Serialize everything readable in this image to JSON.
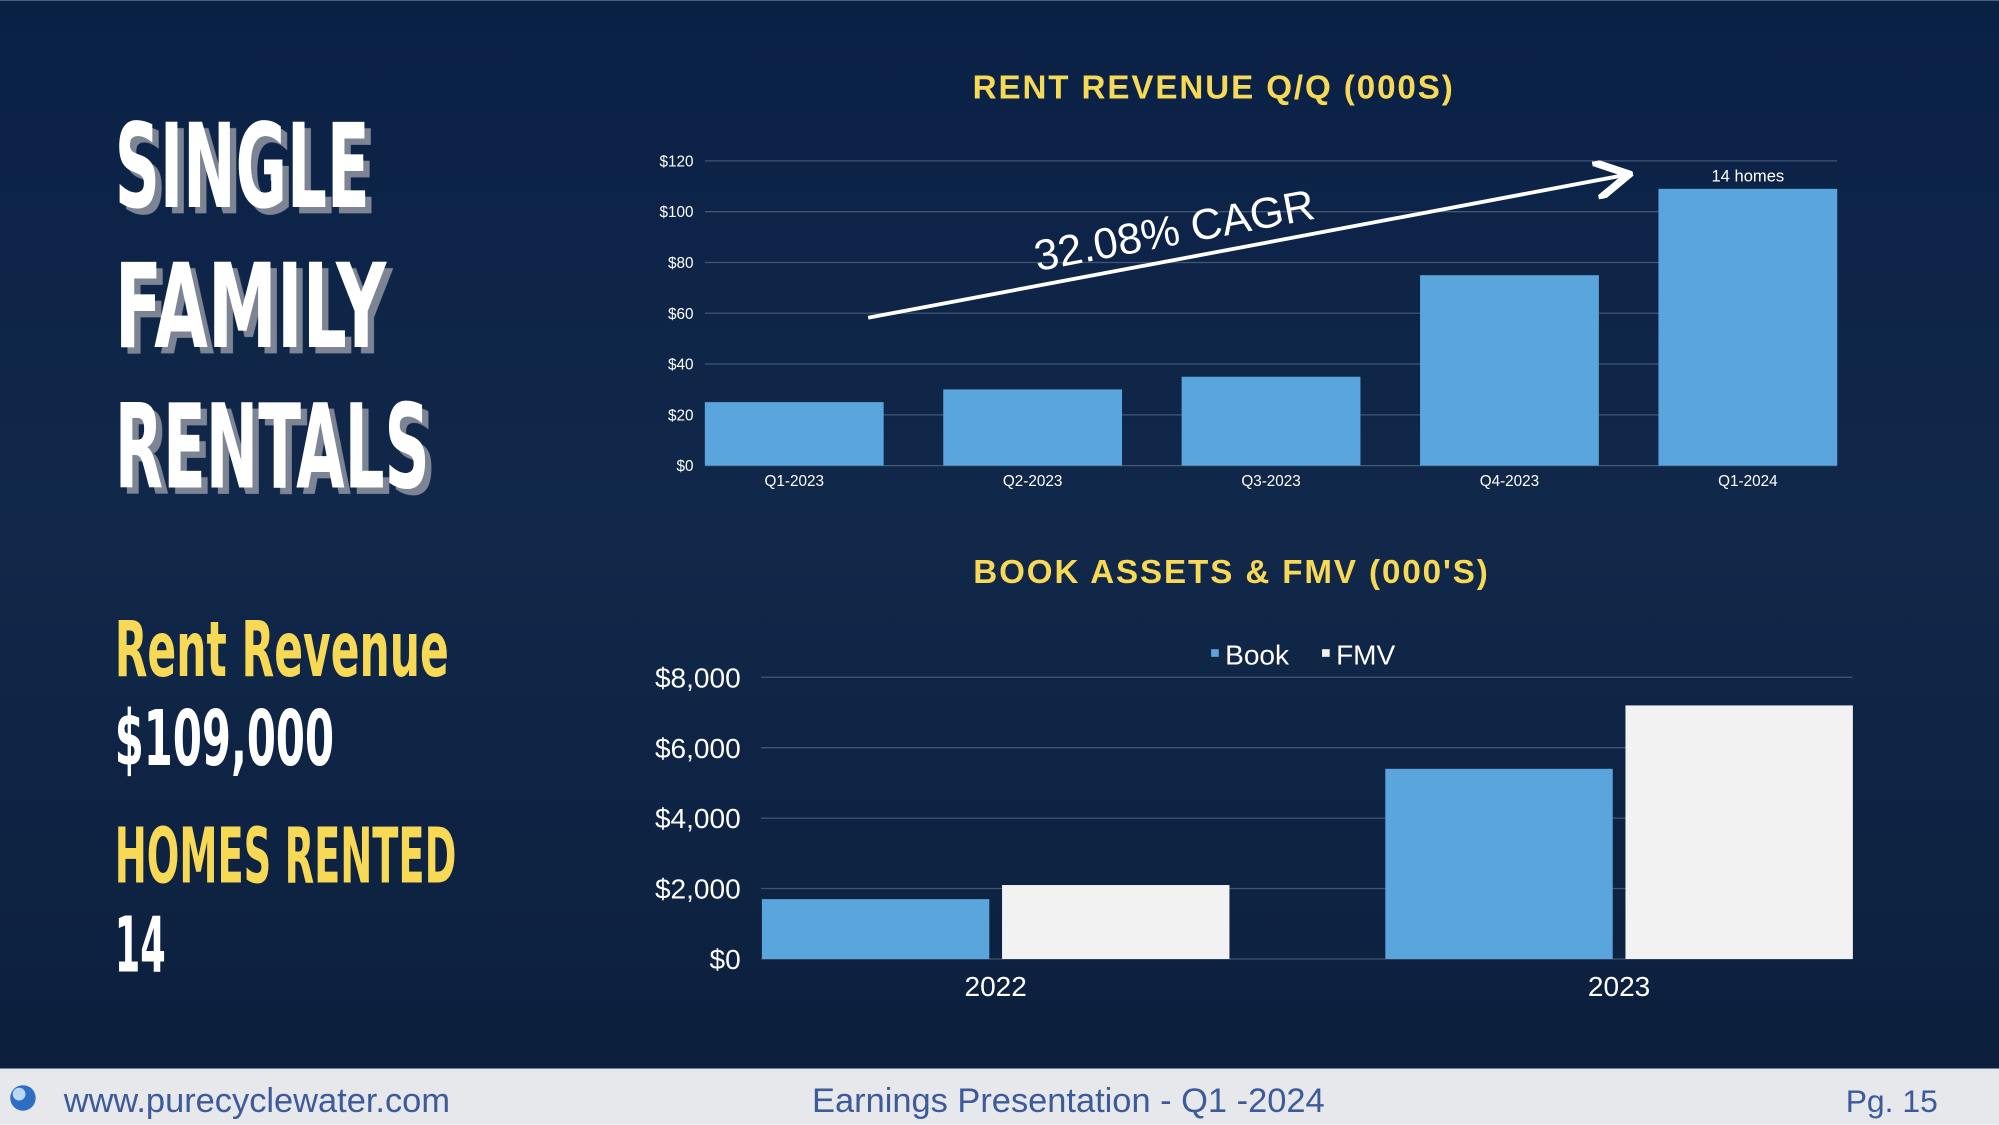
{
  "slide": {
    "title_lines": [
      "SINGLE",
      "FAMILY",
      "RENTALS"
    ],
    "stats": [
      {
        "label": "Rent Revenue",
        "value": "$109,000"
      },
      {
        "label": "HOMES RENTED",
        "value": "14"
      }
    ]
  },
  "footer": {
    "website": "www.purecyclewater.com",
    "center": "Earnings Presentation - Q1 -2024",
    "page": "Pg. 15"
  },
  "chart_data": [
    {
      "type": "bar",
      "title": "RENT REVENUE Q/Q (000S)",
      "categories": [
        "Q1-2023",
        "Q2-2023",
        "Q3-2023",
        "Q4-2023",
        "Q1-2024"
      ],
      "values": [
        25,
        30,
        35,
        75,
        109
      ],
      "color": "#5aa5dc",
      "ylim": [
        0,
        120
      ],
      "yticks": [
        {
          "value": 0,
          "label": "$0"
        },
        {
          "value": 20,
          "label": "$20"
        },
        {
          "value": 40,
          "label": "$40"
        },
        {
          "value": 60,
          "label": "$60"
        },
        {
          "value": 80,
          "label": "$80"
        },
        {
          "value": 100,
          "label": "$100"
        },
        {
          "value": 120,
          "label": "$120"
        }
      ],
      "grid": true,
      "annotations": [
        "32.08% CAGR",
        "14 homes"
      ]
    },
    {
      "type": "bar",
      "title": "BOOK ASSETS & FMV (000'S)",
      "categories": [
        "2022",
        "2023"
      ],
      "series": [
        {
          "name": "Book",
          "color": "#5aa5dc",
          "values": [
            1700,
            5400
          ]
        },
        {
          "name": "FMV",
          "color": "#f2f2f2",
          "values": [
            2100,
            7200
          ]
        }
      ],
      "ylim": [
        0,
        8000
      ],
      "yticks": [
        {
          "value": 0,
          "label": "$0"
        },
        {
          "value": 2000,
          "label": "$2,000"
        },
        {
          "value": 4000,
          "label": "$4,000"
        },
        {
          "value": 6000,
          "label": "$6,000"
        },
        {
          "value": 8000,
          "label": "$8,000"
        }
      ],
      "grid": true,
      "legend": "top"
    }
  ]
}
